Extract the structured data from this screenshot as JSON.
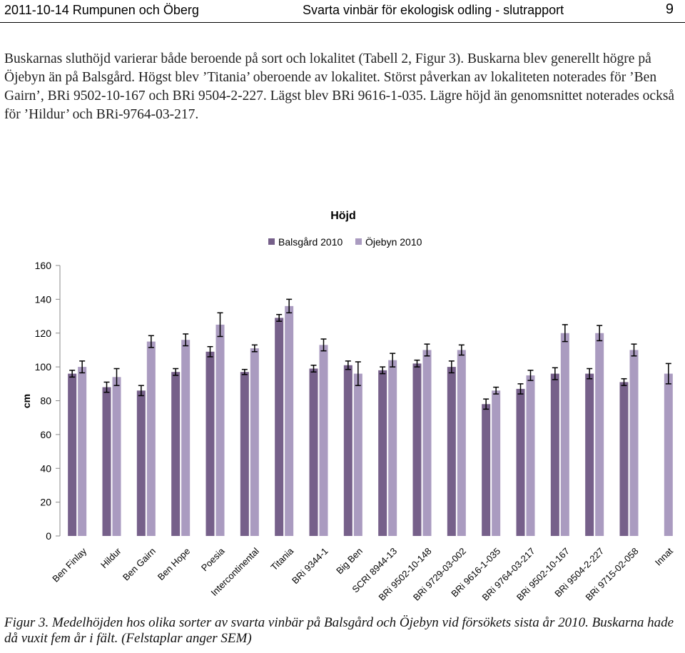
{
  "header": {
    "left": "2011-10-14 Rumpunen och Öberg",
    "title": "Svarta vinbär för ekologisk odling - slutrapport",
    "page_number": "9"
  },
  "body_text": "Buskarnas sluthöjd varierar både beroende på sort och lokalitet (Tabell 2, Figur 3). Buskarna blev generellt högre på Öjebyn än på Balsgård. Högst blev ’Titania’ oberoende av lokalitet. Störst påverkan av lokaliteten noterades för ’Ben Gairn’, BRi 9502-10-167 och BRi 9504-2-227. Lägst blev BRi 9616-1-035. Lägre höjd än genomsnittet noterades också för ’Hildur’ och BRi-9764-03-217.",
  "caption": "Figur 3. Medelhöjden hos olika sorter av svarta vinbär på Balsgård och Öjebyn vid försökets sista år 2010. Buskarna hade då vuxit fem år i fält. (Felstaplar anger SEM)",
  "colors": {
    "series1": "#76608a",
    "series2": "#aa9bc0",
    "error_bar": "#000000",
    "axis": "#888888"
  },
  "chart_data": {
    "type": "bar",
    "title": "Höjd",
    "ylabel": "cm",
    "xlabel": "",
    "ylim": [
      0,
      160
    ],
    "yticks": [
      0,
      20,
      40,
      60,
      80,
      100,
      120,
      140,
      160
    ],
    "grid": false,
    "legend_position": "top-center",
    "categories": [
      "Ben Finlay",
      "Hildur",
      "Ben Gairn",
      "Ben Hope",
      "Poesia",
      "Intercontinental",
      "Titania",
      "BRi 9344-1",
      "Big Ben",
      "SCRI 8944-13",
      "BRi 9502-10-148",
      "BRi 9729-03-002",
      "BRi 9616-1-035",
      "BRi 9764-03-217",
      "BRi 9502-10-167",
      "BRi 9504-2-227",
      "BRi 9715-02-058",
      "Innat"
    ],
    "series": [
      {
        "name": "Balsgård 2010",
        "values": [
          96,
          88,
          86,
          97,
          109,
          97,
          129,
          99,
          101,
          98,
          102,
          100,
          78,
          87,
          96,
          96,
          91,
          null
        ],
        "errors": [
          2,
          3,
          3,
          2,
          3,
          1.5,
          2,
          2,
          2.5,
          2,
          2,
          3.5,
          3,
          3,
          3.5,
          3,
          2,
          null
        ]
      },
      {
        "name": "Öjebyn 2010",
        "values": [
          100,
          94,
          115,
          116,
          125,
          111,
          136,
          113,
          96,
          104,
          110,
          110,
          86,
          95,
          120,
          120,
          110,
          96
        ],
        "errors": [
          3.5,
          5,
          3.5,
          3.5,
          7,
          2,
          4,
          3.5,
          7,
          4,
          3.5,
          3,
          2,
          3,
          5,
          4.5,
          3.5,
          6
        ]
      }
    ]
  }
}
